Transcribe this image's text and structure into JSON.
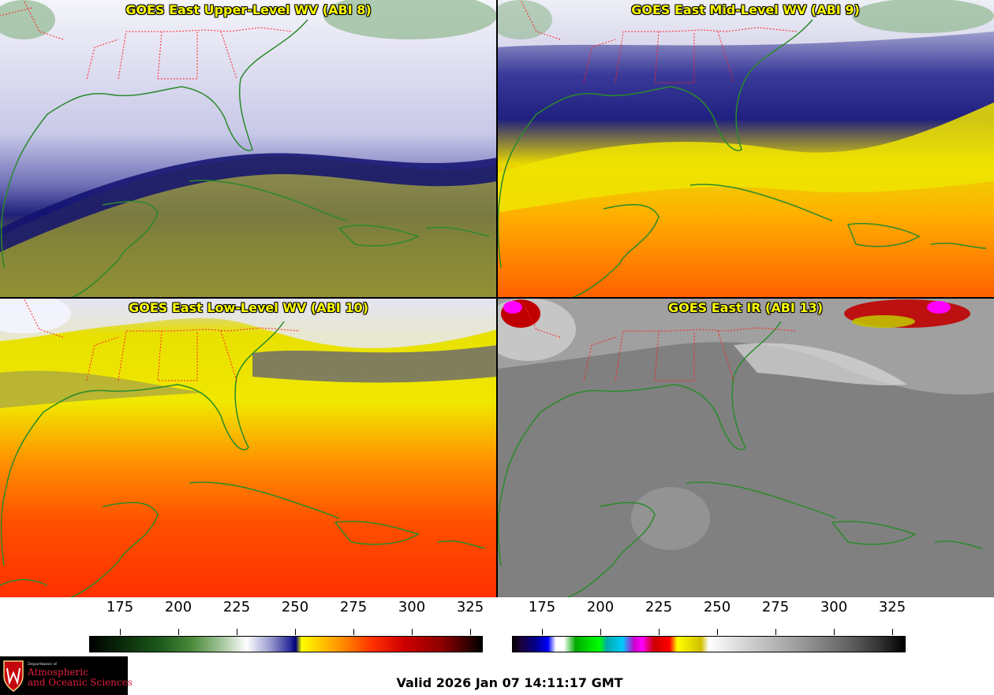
{
  "panels": {
    "upper": {
      "title": "GOES East Upper-Level WV (ABI 8)"
    },
    "mid": {
      "title": "GOES East Mid-Level WV (ABI 9)"
    },
    "low": {
      "title": "GOES East Low-Level WV (ABI 10)"
    },
    "ir": {
      "title": "GOES East IR (ABI 13)"
    }
  },
  "colorbars": {
    "wv": {
      "ticks": [
        "175",
        "200",
        "225",
        "250",
        "275",
        "300",
        "325"
      ]
    },
    "ir": {
      "ticks": [
        "175",
        "200",
        "225",
        "250",
        "275",
        "300",
        "325"
      ]
    }
  },
  "logo": {
    "department": "Department of",
    "line1": "Atmospheric",
    "line2": "and Oceanic Sciences"
  },
  "valid_time": "Valid 2026 Jan 07 14:11:17 GMT",
  "colors": {
    "title_text": "#ffff00",
    "coastline": "#2a8a2a",
    "state_borders": "#ff2020"
  }
}
